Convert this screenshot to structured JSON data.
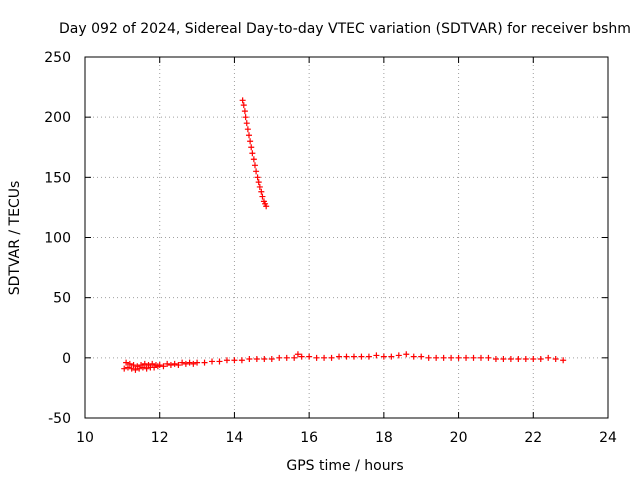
{
  "chart_data": {
    "type": "scatter",
    "title": "Day 092 of 2024, Sidereal Day-to-day VTEC variation (SDTVAR) for receiver bshm",
    "xlabel": "GPS time / hours",
    "ylabel": "SDTVAR / TECUs",
    "xlim": [
      10,
      24
    ],
    "ylim": [
      -50,
      250
    ],
    "xticks": [
      10,
      12,
      14,
      16,
      18,
      20,
      22,
      24
    ],
    "yticks": [
      -50,
      0,
      50,
      100,
      150,
      200,
      250
    ],
    "grid": true,
    "marker": "plus",
    "color": "#ff0000",
    "series": [
      {
        "name": "main-track",
        "points": [
          [
            11.05,
            -9
          ],
          [
            11.1,
            -4
          ],
          [
            11.15,
            -8
          ],
          [
            11.2,
            -5
          ],
          [
            11.25,
            -9
          ],
          [
            11.3,
            -6
          ],
          [
            11.35,
            -10
          ],
          [
            11.4,
            -7
          ],
          [
            11.45,
            -9
          ],
          [
            11.5,
            -6
          ],
          [
            11.55,
            -8
          ],
          [
            11.6,
            -5
          ],
          [
            11.65,
            -9
          ],
          [
            11.7,
            -6
          ],
          [
            11.75,
            -8
          ],
          [
            11.8,
            -5
          ],
          [
            11.85,
            -8
          ],
          [
            11.9,
            -6
          ],
          [
            11.95,
            -7
          ],
          [
            12.0,
            -6
          ],
          [
            12.1,
            -7
          ],
          [
            12.2,
            -5
          ],
          [
            12.3,
            -6
          ],
          [
            12.4,
            -5
          ],
          [
            12.5,
            -6
          ],
          [
            12.6,
            -4
          ],
          [
            12.7,
            -5
          ],
          [
            12.8,
            -4
          ],
          [
            12.9,
            -5
          ],
          [
            13.0,
            -4
          ],
          [
            13.2,
            -4
          ],
          [
            13.4,
            -3
          ],
          [
            13.6,
            -3
          ],
          [
            13.8,
            -2
          ],
          [
            14.0,
            -2
          ],
          [
            14.2,
            -2
          ],
          [
            14.4,
            -1
          ],
          [
            14.6,
            -1
          ],
          [
            14.8,
            -1
          ],
          [
            15.0,
            -1
          ],
          [
            15.2,
            0
          ],
          [
            15.4,
            0
          ],
          [
            15.6,
            0
          ],
          [
            15.7,
            3
          ],
          [
            15.8,
            1
          ],
          [
            16.0,
            1
          ],
          [
            16.2,
            0
          ],
          [
            16.4,
            0
          ],
          [
            16.6,
            0
          ],
          [
            16.8,
            1
          ],
          [
            17.0,
            1
          ],
          [
            17.2,
            1
          ],
          [
            17.4,
            1
          ],
          [
            17.6,
            1
          ],
          [
            17.8,
            2
          ],
          [
            18.0,
            1
          ],
          [
            18.2,
            1
          ],
          [
            18.4,
            2
          ],
          [
            18.6,
            3
          ],
          [
            18.8,
            1
          ],
          [
            19.0,
            1
          ],
          [
            19.2,
            0
          ],
          [
            19.4,
            0
          ],
          [
            19.6,
            0
          ],
          [
            19.8,
            0
          ],
          [
            20.0,
            0
          ],
          [
            20.2,
            0
          ],
          [
            20.4,
            0
          ],
          [
            20.6,
            0
          ],
          [
            20.8,
            0
          ],
          [
            21.0,
            -1
          ],
          [
            21.2,
            -1
          ],
          [
            21.4,
            -1
          ],
          [
            21.6,
            -1
          ],
          [
            21.8,
            -1
          ],
          [
            22.0,
            -1
          ],
          [
            22.2,
            -1
          ],
          [
            22.4,
            0
          ],
          [
            22.6,
            -1
          ],
          [
            22.8,
            -2
          ]
        ]
      },
      {
        "name": "spike-track",
        "points": [
          [
            14.22,
            214
          ],
          [
            14.25,
            210
          ],
          [
            14.28,
            205
          ],
          [
            14.3,
            200
          ],
          [
            14.33,
            195
          ],
          [
            14.36,
            190
          ],
          [
            14.39,
            185
          ],
          [
            14.42,
            180
          ],
          [
            14.45,
            175
          ],
          [
            14.48,
            170
          ],
          [
            14.52,
            165
          ],
          [
            14.55,
            160
          ],
          [
            14.58,
            155
          ],
          [
            14.62,
            150
          ],
          [
            14.65,
            146
          ],
          [
            14.68,
            142
          ],
          [
            14.72,
            138
          ],
          [
            14.75,
            134
          ],
          [
            14.79,
            130
          ],
          [
            14.82,
            128
          ],
          [
            14.85,
            126
          ]
        ]
      }
    ]
  }
}
